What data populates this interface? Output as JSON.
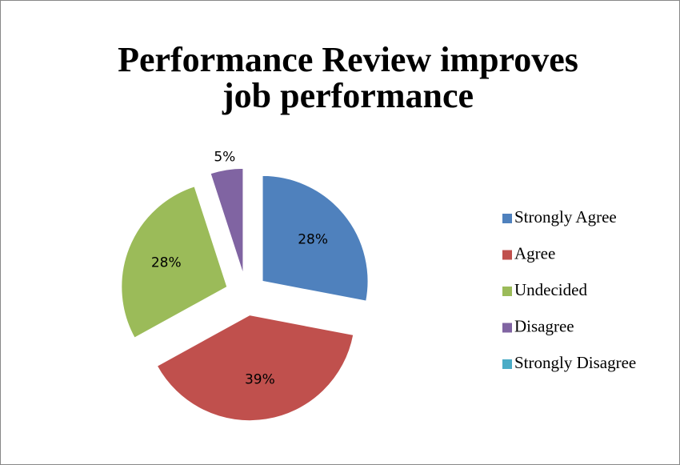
{
  "chart_data": {
    "type": "pie",
    "title": "Performance Review improves job performance",
    "categories": [
      "Strongly Agree",
      "Agree",
      "Undecided",
      "Disagree",
      "Strongly Disagree"
    ],
    "values": [
      28,
      39,
      28,
      5,
      0
    ],
    "value_labels": [
      "28%",
      "39%",
      "28%",
      "5%",
      null
    ],
    "colors": [
      "#4f81bd",
      "#c0504d",
      "#9bbb59",
      "#8064a2",
      "#4bacc6"
    ],
    "legend": "right"
  }
}
